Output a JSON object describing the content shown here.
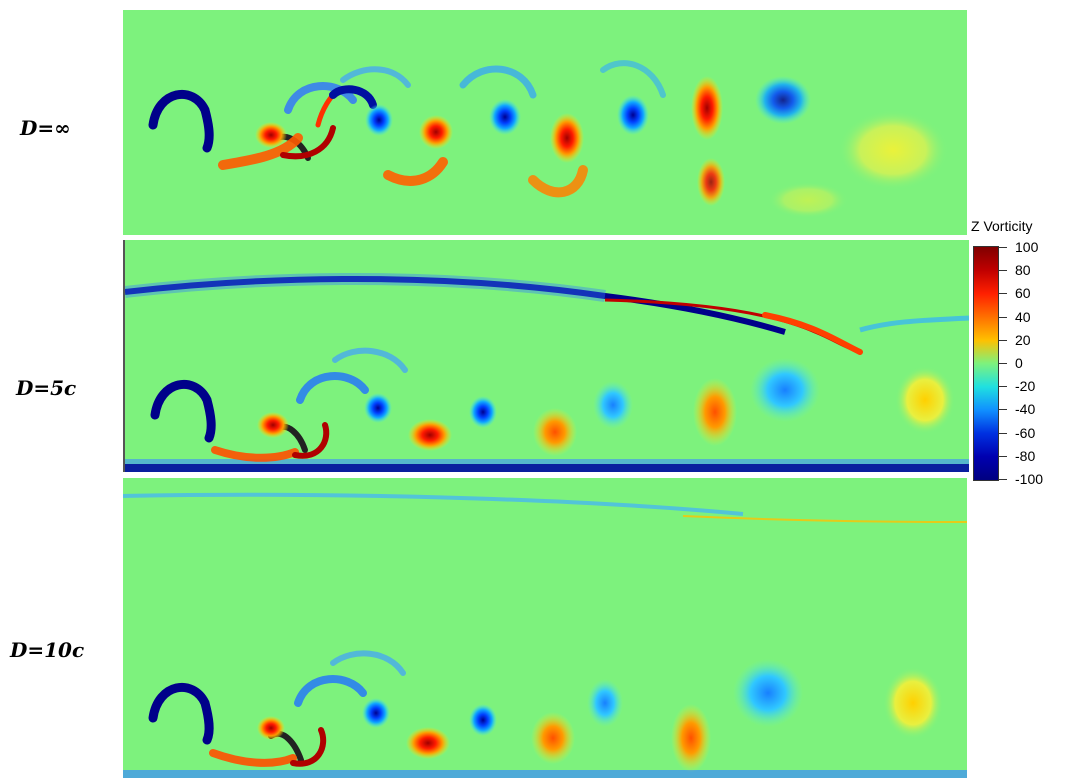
{
  "panels": [
    {
      "label_prefix": "D",
      "label_suffix": "=∞",
      "suffix_italic": false
    },
    {
      "label_prefix": "D",
      "label_suffix": "=5",
      "label_unit": "c"
    },
    {
      "label_prefix": "D",
      "label_suffix": "=10",
      "label_unit": "c"
    }
  ],
  "legend": {
    "title": "Z Vorticity",
    "ticks": [
      "100",
      "80",
      "60",
      "40",
      "20",
      "0",
      "-20",
      "-40",
      "-60",
      "-80",
      "-100"
    ],
    "colormap": [
      "#800000",
      "#c00000",
      "#ff2000",
      "#ff7000",
      "#ffc000",
      "#7df27d",
      "#20e0e0",
      "#1090ff",
      "#0030e0",
      "#0000b0",
      "#000080"
    ]
  },
  "colors": {
    "background_field": "#7df27d",
    "positive_core": "#c80000",
    "negative_core": "#000090",
    "wall": "#0a1e9e"
  }
}
